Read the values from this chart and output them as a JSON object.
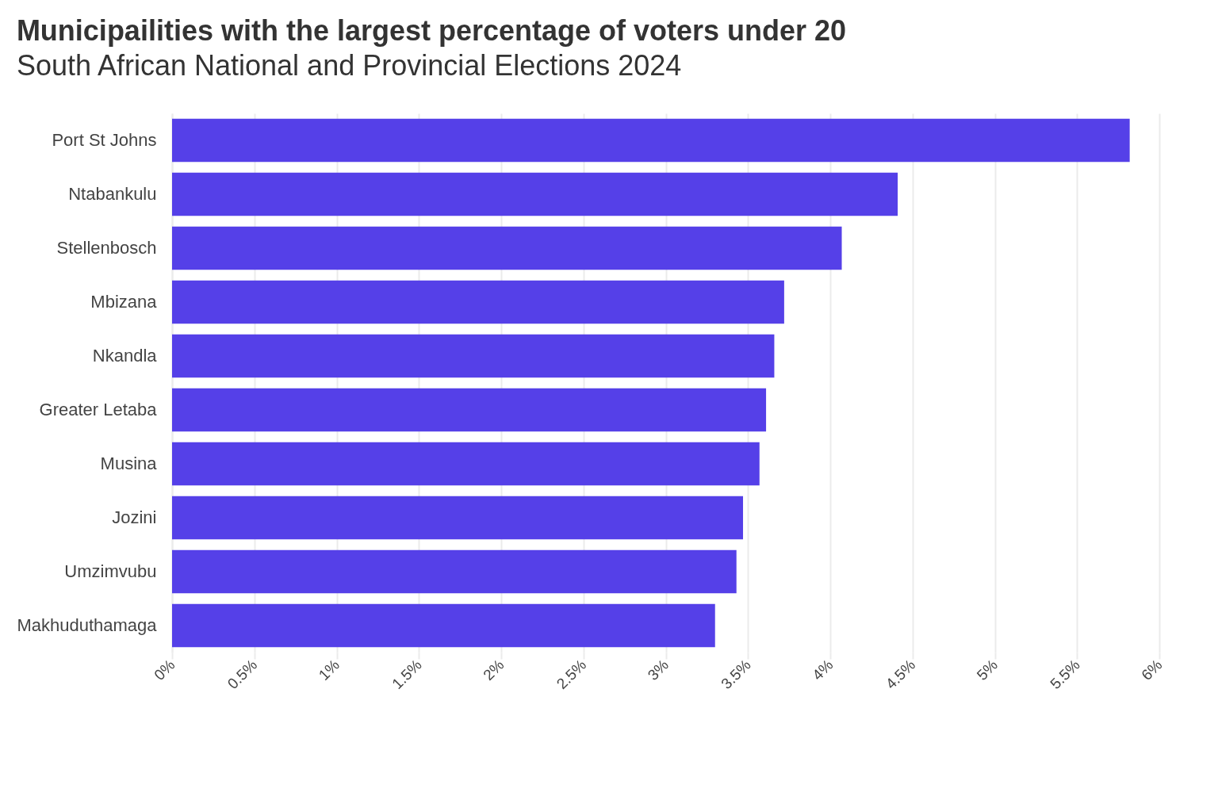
{
  "chart_data": {
    "type": "bar",
    "orientation": "horizontal",
    "title": "Municipailities with the largest percentage of voters under 20",
    "subtitle": "South African National and Provincial Elections 2024",
    "categories": [
      "Port St Johns",
      "Ntabankulu",
      "Stellenbosch",
      "Mbizana",
      "Nkandla",
      "Greater Letaba",
      "Musina",
      "Jozini",
      "Umzimvubu",
      "Makhuduthamaga"
    ],
    "values": [
      5.82,
      4.41,
      4.07,
      3.72,
      3.66,
      3.61,
      3.57,
      3.47,
      3.43,
      3.3
    ],
    "color": "#5540e8",
    "xlim": [
      0,
      6
    ],
    "xticks": [
      {
        "value": 0,
        "label": "0%"
      },
      {
        "value": 0.5,
        "label": "0.5%"
      },
      {
        "value": 1,
        "label": "1%"
      },
      {
        "value": 1.5,
        "label": "1.5%"
      },
      {
        "value": 2,
        "label": "2%"
      },
      {
        "value": 2.5,
        "label": "2.5%"
      },
      {
        "value": 3,
        "label": "3%"
      },
      {
        "value": 3.5,
        "label": "3.5%"
      },
      {
        "value": 4,
        "label": "4%"
      },
      {
        "value": 4.5,
        "label": "4.5%"
      },
      {
        "value": 5,
        "label": "5%"
      },
      {
        "value": 5.5,
        "label": "5.5%"
      },
      {
        "value": 6,
        "label": "6%"
      }
    ],
    "grid": "x"
  }
}
